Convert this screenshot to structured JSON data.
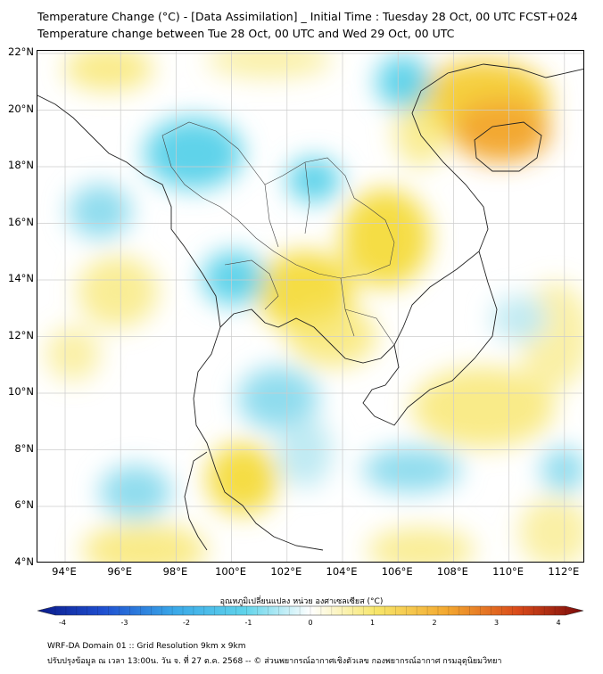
{
  "title_line1": "Temperature Change (°C) - [Data Assimilation] _ Initial Time : Tuesday 28 Oct, 00 UTC FCST+024",
  "title_line2": "Temperature change between Tue 28 Oct, 00 UTC and Wed 29 Oct, 00 UTC",
  "lat_labels": [
    "22°N",
    "20°N",
    "18°N",
    "16°N",
    "14°N",
    "12°N",
    "10°N",
    "8°N",
    "6°N",
    "4°N"
  ],
  "lon_labels": [
    "94°E",
    "96°E",
    "98°E",
    "100°E",
    "102°E",
    "104°E",
    "106°E",
    "108°E",
    "110°E",
    "112°E"
  ],
  "colorbar": {
    "title": "อุณหภูมิเปลี่ยนแปลง หน่วย องศาเซลเซียส (°C)",
    "ticks": [
      "-4",
      "-3",
      "-2",
      "-1",
      "0",
      "1",
      "2",
      "3",
      "4"
    ],
    "min": -4,
    "max": 4
  },
  "footer_line1": "WRF-DA Domain 01 :: Grid Resolution 9km x 9km",
  "footer_line2": "ปรับปรุงข้อมูล ณ เวลา 13:00น. วัน จ. ที่ 27 ต.ค. 2568 -- © ส่วนพยากรณ์อากาศเชิงตัวเลข กองพยากรณ์อากาศ กรมอุตุนิยมวิทยา",
  "colors": {
    "warm": "#f5e04a",
    "warm_strong": "#f3a830",
    "cool": "#5fd3ea",
    "cool_light": "#bfeaf3",
    "coast": "#222222",
    "grid": "#cccccc"
  }
}
